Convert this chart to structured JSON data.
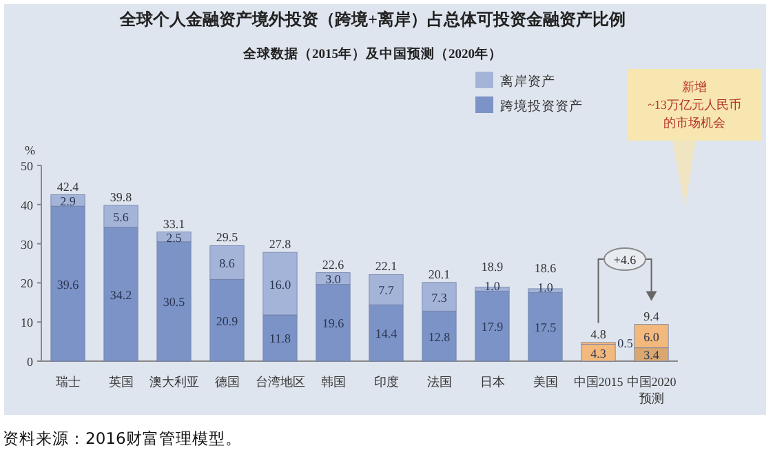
{
  "chart_data": {
    "type": "bar",
    "title": "全球个人金融资产境外投资（跨境+离岸）占总体可投资金融资产比例",
    "subtitle": "全球数据（2015年）及中国预测（2020年）",
    "ylabel": "%",
    "categories": [
      "瑞士",
      "英国",
      "澳大利亚",
      "德国",
      "台湾地区",
      "韩国",
      "印度",
      "法国",
      "日本",
      "美国",
      "中国2015",
      "中国2020\n预测"
    ],
    "stacked": true,
    "series": [
      {
        "name": "跨境投资资产",
        "color": "#7b93c6",
        "value_labels": [
          "39.6",
          "34.2",
          "30.5",
          "20.9",
          "11.8",
          "19.6",
          "14.4",
          "12.8",
          "17.9",
          "17.5",
          "4.3",
          "3.4"
        ],
        "colors": [
          "#7b93c6",
          "#7b93c6",
          "#7b93c6",
          "#7b93c6",
          "#7b93c6",
          "#7b93c6",
          "#7b93c6",
          "#7b93c6",
          "#7b93c6",
          "#7b93c6",
          "#f3b87c",
          "#d8a870"
        ],
        "values": [
          39.6,
          34.2,
          30.5,
          20.9,
          11.8,
          19.6,
          14.4,
          12.8,
          17.9,
          17.5,
          4.3,
          3.4
        ]
      },
      {
        "name": "离岸资产",
        "color": "#a4b4d9",
        "value_labels": [
          "2.9",
          "5.6",
          "2.5",
          "8.6",
          "16.0",
          "3.0",
          "7.7",
          "7.3",
          "1.0",
          "1.0",
          "0.5",
          "6.0"
        ],
        "colors": [
          "#a4b4d9",
          "#a4b4d9",
          "#a4b4d9",
          "#a4b4d9",
          "#a4b4d9",
          "#a4b4d9",
          "#a4b4d9",
          "#a4b4d9",
          "#a4b4d9",
          "#a4b4d9",
          "#f3b87c",
          "#f3b87c"
        ],
        "values": [
          2.9,
          5.6,
          2.5,
          8.6,
          16.0,
          3.0,
          7.7,
          7.3,
          1.0,
          1.0,
          0.5,
          6.0
        ]
      }
    ],
    "totals": [
      "42.4",
      "39.8",
      "33.1",
      "29.5",
      "27.8",
      "22.6",
      "22.1",
      "20.1",
      "18.9",
      "18.6",
      "4.8",
      "9.4"
    ],
    "ylim": [
      0,
      50
    ],
    "yticks": [
      0,
      10,
      20,
      30,
      40,
      50
    ],
    "legend": "top right",
    "annotations": [
      "+4.6",
      "新增",
      "~13万亿元人民币",
      "的市场机会",
      "资料来源：2016财富管理模型。"
    ]
  }
}
